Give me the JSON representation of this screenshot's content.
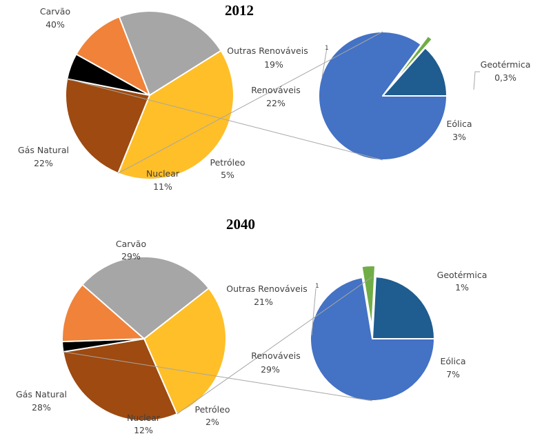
{
  "chart_data": [
    {
      "type": "pie",
      "title": "2012",
      "unit": "%",
      "slices": [
        {
          "name": "Carvão",
          "label": "40%",
          "value": 40,
          "color": "#FFBF28"
        },
        {
          "name": "Renováveis",
          "label": "22%",
          "value": 22,
          "color": "#9E4A10"
        },
        {
          "name": "Petróleo",
          "label": "5%",
          "value": 5,
          "color": "#000000"
        },
        {
          "name": "Nuclear",
          "label": "11%",
          "value": 11,
          "color": "#F0823A"
        },
        {
          "name": "Gás Natural",
          "label": "22%",
          "value": 22,
          "color": "#A6A6A6"
        }
      ],
      "breakdown_of": "Renováveis",
      "breakdown": [
        {
          "name": "Outras Renováveis",
          "footnote": "1",
          "label": "19%",
          "value": 19,
          "color": "#4472C4"
        },
        {
          "name": "Geotérmica",
          "label": "0,3%",
          "value": 0.3,
          "color": "#70AD47"
        },
        {
          "name": "Eólica",
          "label": "3%",
          "value": 3,
          "color": "#1F5C8F"
        }
      ]
    },
    {
      "type": "pie",
      "title": "2040",
      "unit": "%",
      "slices": [
        {
          "name": "Carvão",
          "label": "29%",
          "value": 29,
          "color": "#FFBF28"
        },
        {
          "name": "Renováveis",
          "label": "29%",
          "value": 29,
          "color": "#9E4A10"
        },
        {
          "name": "Petróleo",
          "label": "2%",
          "value": 2,
          "color": "#000000"
        },
        {
          "name": "Nuclear",
          "label": "12%",
          "value": 12,
          "color": "#F0823A"
        },
        {
          "name": "Gás Natural",
          "label": "28%",
          "value": 28,
          "color": "#A6A6A6"
        }
      ],
      "breakdown_of": "Renováveis",
      "breakdown": [
        {
          "name": "Outras Renováveis",
          "footnote": "1",
          "label": "21%",
          "value": 21,
          "color": "#4472C4"
        },
        {
          "name": "Geotérmica",
          "label": "1%",
          "value": 1,
          "color": "#70AD47"
        },
        {
          "name": "Eólica",
          "label": "7%",
          "value": 7,
          "color": "#1F5C8F"
        }
      ]
    }
  ]
}
